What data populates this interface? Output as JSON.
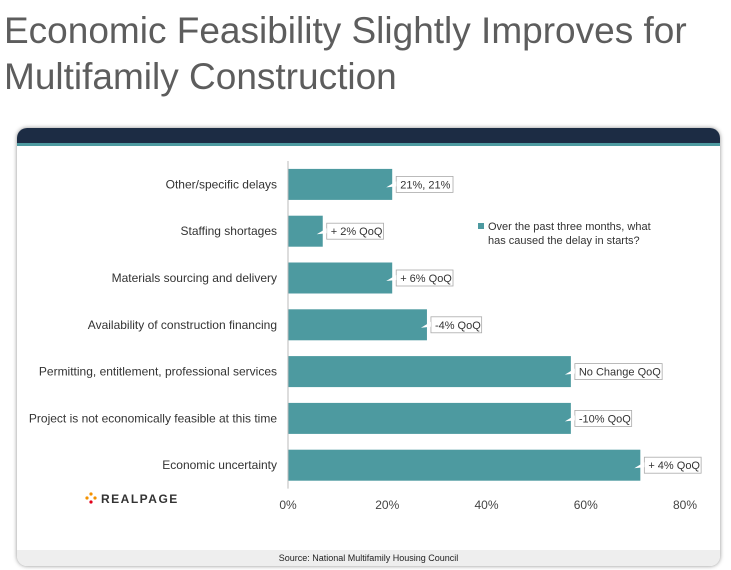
{
  "page": {
    "title_line1": "Economic Feasibility Slightly Improves for",
    "title_line2": "Multifamily Construction"
  },
  "brand": {
    "name": "REALPAGE",
    "logo_icon": "realpage-dots-icon"
  },
  "source": "Source: National Multifamily Housing Council",
  "colors": {
    "bar": "#4d9aa0",
    "header": "#1c2c44",
    "stripe": "#4d9aa0",
    "title": "#5d5d5d"
  },
  "chart_data": {
    "type": "bar",
    "orientation": "horizontal",
    "categories": [
      "Other/specific delays",
      "Staffing shortages",
      "Materials sourcing and delivery",
      "Availability of construction financing",
      "Permitting, entitlement, professional services",
      "Project is not economically feasible at this time",
      "Economic uncertainty"
    ],
    "series": [
      {
        "name": "Over the past three months, what has caused the delay in starts?",
        "values": [
          21,
          7,
          21,
          28,
          57,
          57,
          71
        ]
      }
    ],
    "data_labels": [
      "21%, 21%",
      "+ 2% QoQ",
      "+ 6% QoQ",
      "-4% QoQ",
      "No Change QoQ",
      "-10% QoQ",
      "+ 4% QoQ"
    ],
    "legend": {
      "line1": "Over the past three months, what",
      "line2": "has caused the delay in starts?",
      "position": "top-right"
    },
    "xlim": [
      0,
      80
    ],
    "xticks": [
      0,
      20,
      40,
      60,
      80
    ],
    "xtick_labels": [
      "0%",
      "20%",
      "40%",
      "60%",
      "80%"
    ],
    "grid": false
  }
}
